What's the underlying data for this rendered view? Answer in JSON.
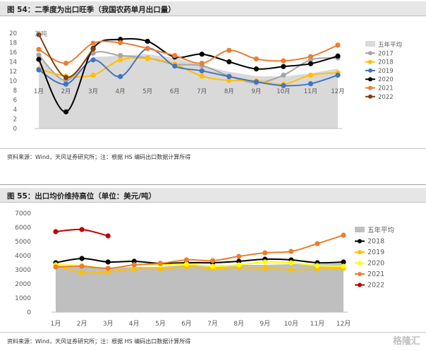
{
  "chart_data": [
    {
      "type": "line",
      "title": "图 54：二季度为出口旺季（我国农药单月出口量）",
      "unit": "万吨",
      "categories": [
        "1月",
        "2月",
        "3月",
        "4月",
        "5月",
        "6月",
        "7月",
        "8月",
        "9月",
        "10月",
        "11月",
        "12月"
      ],
      "ylim": [
        0,
        20
      ],
      "yticks": [
        "0",
        "2",
        "4",
        "6",
        "8",
        "10",
        "12",
        "14",
        "16",
        "18",
        "20"
      ],
      "grid": false,
      "legend_position": "right",
      "area": {
        "name": "五年平均",
        "color": "#d9d9d9",
        "values": [
          14.8,
          9.8,
          15.0,
          15.3,
          15.6,
          14.8,
          13.2,
          11.9,
          11.0,
          10.9,
          11.6,
          12.6
        ]
      },
      "series": [
        {
          "name": "2017",
          "color": "#a5a5a5",
          "values": [
            15.4,
            10.1,
            15.8,
            15.3,
            14.8,
            13.5,
            13.2,
            11.0,
            9.6,
            11.2,
            14.4,
            14.8
          ]
        },
        {
          "name": "2018",
          "color": "#ffc000",
          "values": [
            12.5,
            11.0,
            11.2,
            14.4,
            14.7,
            13.5,
            11.0,
            10.1,
            10.0,
            9.3,
            11.2,
            11.7
          ]
        },
        {
          "name": "2019",
          "color": "#4472c4",
          "values": [
            12.3,
            9.3,
            14.4,
            10.9,
            16.8,
            13.1,
            12.1,
            10.9,
            9.8,
            9.0,
            9.4,
            11.2
          ]
        },
        {
          "name": "2020",
          "color": "#000000",
          "values": [
            14.5,
            3.5,
            16.8,
            18.7,
            18.3,
            15.0,
            15.6,
            14.0,
            12.5,
            13.0,
            13.6,
            15.2
          ]
        },
        {
          "name": "2021",
          "color": "#ed7d31",
          "values": [
            16.6,
            13.7,
            17.9,
            18.0,
            16.8,
            15.3,
            13.7,
            16.4,
            14.6,
            14.2,
            15.1,
            17.5
          ]
        },
        {
          "name": "2022",
          "color": "#843c0c",
          "values": [
            19.7,
            10.7,
            16.7,
            null,
            null,
            null,
            null,
            null,
            null,
            null,
            null,
            null
          ]
        }
      ]
    },
    {
      "type": "line",
      "title": "图 55：出口均价维持高位（单位：美元/吨）",
      "categories": [
        "1月",
        "2月",
        "3月",
        "4月",
        "5月",
        "6月",
        "7月",
        "8月",
        "9月",
        "10月",
        "11月",
        "12月"
      ],
      "ylim": [
        0,
        7000
      ],
      "yticks": [
        "0",
        "1000",
        "2000",
        "3000",
        "4000",
        "5000",
        "6000",
        "7000"
      ],
      "grid": false,
      "legend_position": "right",
      "area": {
        "name": "五年平均",
        "color": "#bfbfbf",
        "values": [
          3250,
          3300,
          3150,
          3200,
          3200,
          3350,
          3300,
          3350,
          3350,
          3400,
          3400,
          3450
        ]
      },
      "series": [
        {
          "name": "2018",
          "color": "#000000",
          "values": [
            3500,
            3800,
            3550,
            3600,
            3450,
            3500,
            3500,
            3600,
            3750,
            3700,
            3500,
            3550
          ]
        },
        {
          "name": "2019",
          "color": "#ffc000",
          "values": [
            3300,
            2800,
            2850,
            3050,
            3050,
            3200,
            3100,
            3150,
            3100,
            3000,
            3050,
            3100
          ]
        },
        {
          "name": "2020",
          "color": "#ffff00",
          "values": [
            3350,
            3300,
            3100,
            3350,
            3350,
            3400,
            3250,
            3350,
            3550,
            3500,
            3300,
            3250
          ]
        },
        {
          "name": "2021",
          "color": "#ed7d31",
          "values": [
            3200,
            3250,
            3100,
            3350,
            3450,
            3700,
            3650,
            3950,
            4200,
            4300,
            4850,
            5450
          ]
        },
        {
          "name": "2022",
          "color": "#c00000",
          "values": [
            5700,
            5850,
            5400,
            null,
            null,
            null,
            null,
            null,
            null,
            null,
            null,
            null
          ]
        }
      ]
    }
  ],
  "captions": {
    "source1": "资料来源：Wind，天风证券研究所；注：根据 HS 编码出口数据计算所得",
    "source2": "资料来源：Wind，天风证券研究所；注：根据 HS 编码出口数据计算所得"
  },
  "watermark": "格隆汇"
}
